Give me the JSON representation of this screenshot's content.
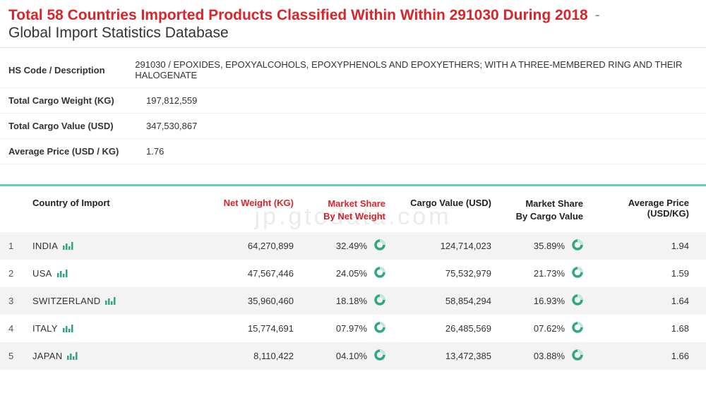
{
  "header": {
    "title_red": "Total 58 Countries Imported Products Classified Within Within 291030 During 2018",
    "dash": "-",
    "subtitle": "Global Import Statistics Database"
  },
  "summary": {
    "rows": [
      {
        "label": "HS Code / Description",
        "value": "291030 / EPOXIDES, EPOXYALCOHOLS, EPOXYPHENOLS AND EPOXYETHERS; WITH A THREE-MEMBERED RING AND THEIR HALOGENATE"
      },
      {
        "label": "Total Cargo Weight (KG)",
        "value": "197,812,559"
      },
      {
        "label": "Total Cargo Value (USD)",
        "value": "347,530,867"
      },
      {
        "label": "Average Price (USD / KG)",
        "value": "1.76"
      }
    ]
  },
  "table": {
    "accent_color": "#5fd4bd",
    "icon_color": "#2fa87e",
    "red": "#d9252a",
    "columns": {
      "country": "Country of Import",
      "weight": "Net Weight (KG)",
      "ms_weight_l1": "Market Share",
      "ms_weight_l2": "By Net Weight",
      "value": "Cargo Value (USD)",
      "ms_value_l1": "Market Share",
      "ms_value_l2": "By Cargo Value",
      "price": "Average Price (USD/KG)"
    },
    "rows": [
      {
        "idx": "1",
        "country": "INDIA",
        "weight": "64,270,899",
        "ms_weight": "32.49%",
        "value": "124,714,023",
        "ms_value": "35.89%",
        "price": "1.94"
      },
      {
        "idx": "2",
        "country": "USA",
        "weight": "47,567,446",
        "ms_weight": "24.05%",
        "value": "75,532,979",
        "ms_value": "21.73%",
        "price": "1.59"
      },
      {
        "idx": "3",
        "country": "SWITZERLAND",
        "weight": "35,960,460",
        "ms_weight": "18.18%",
        "value": "58,854,294",
        "ms_value": "16.93%",
        "price": "1.64"
      },
      {
        "idx": "4",
        "country": "ITALY",
        "weight": "15,774,691",
        "ms_weight": "07.97%",
        "value": "26,485,569",
        "ms_value": "07.62%",
        "price": "1.68"
      },
      {
        "idx": "5",
        "country": "JAPAN",
        "weight": "8,110,422",
        "ms_weight": "04.10%",
        "value": "13,472,385",
        "ms_value": "03.88%",
        "price": "1.66"
      }
    ]
  },
  "watermark": "jp.gtodata.com"
}
